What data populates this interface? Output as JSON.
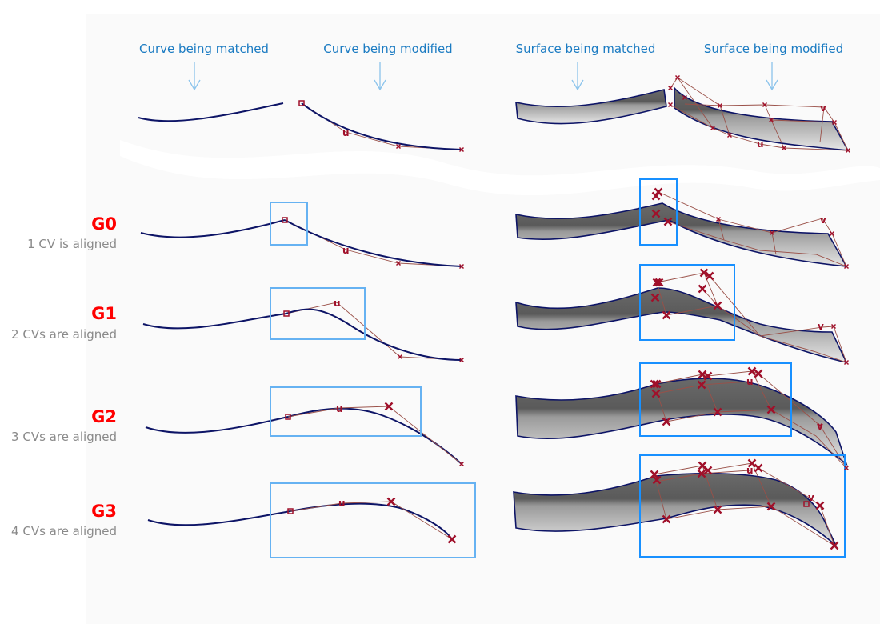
{
  "headers": {
    "curve_matched": "Curve being matched",
    "curve_modified": "Curve being modified",
    "surface_matched": "Surface being matched",
    "surface_modified": "Surface being modified"
  },
  "rows": [
    {
      "label": "G0",
      "caption": "1 CV is aligned"
    },
    {
      "label": "G1",
      "caption": "2 CVs are aligned"
    },
    {
      "label": "G2",
      "caption": "3 CVs are aligned"
    },
    {
      "label": "G3",
      "caption": "4 CVs are aligned"
    }
  ],
  "markers": {
    "u": "u",
    "v": "v"
  },
  "colors": {
    "continuity_label": "#ff0000",
    "caption": "#8a8a8a",
    "header": "#1b7bc2",
    "curve": "#0d1466",
    "cv_marker": "#a0102a",
    "highlight_box_curve": "#66b2f2",
    "highlight_box_surface": "#1890ff"
  }
}
